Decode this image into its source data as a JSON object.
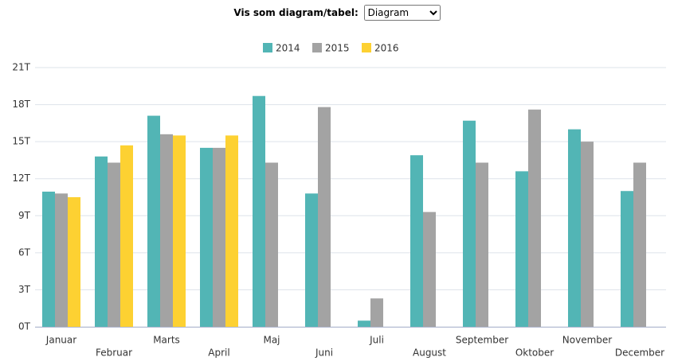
{
  "control": {
    "label": "Vis som diagram/tabel:",
    "value": "Diagram"
  },
  "chart_data": {
    "type": "bar",
    "categories": [
      "Januar",
      "Februar",
      "Marts",
      "April",
      "Maj",
      "Juni",
      "Juli",
      "August",
      "September",
      "Oktober",
      "November",
      "December"
    ],
    "series": [
      {
        "name": "2014",
        "color": "#52b5b5",
        "values": [
          10.95,
          13.8,
          17.1,
          14.5,
          18.7,
          10.8,
          0.5,
          13.9,
          16.7,
          12.6,
          16.0,
          11.0
        ]
      },
      {
        "name": "2015",
        "color": "#a3a3a3",
        "values": [
          10.8,
          13.3,
          15.6,
          14.5,
          13.3,
          17.8,
          2.3,
          9.3,
          13.3,
          17.6,
          15.0,
          13.3
        ]
      },
      {
        "name": "2016",
        "color": "#fdd132",
        "values": [
          10.5,
          14.7,
          15.5,
          15.5,
          null,
          null,
          null,
          null,
          null,
          null,
          null,
          null
        ]
      }
    ],
    "ylim": [
      0,
      21
    ],
    "yticks": [
      {
        "value": 0,
        "label": "0T"
      },
      {
        "value": 3,
        "label": "3T"
      },
      {
        "value": 6,
        "label": "6T"
      },
      {
        "value": 9,
        "label": "9T"
      },
      {
        "value": 12,
        "label": "12T"
      },
      {
        "value": 15,
        "label": "15T"
      },
      {
        "value": 18,
        "label": "18T"
      },
      {
        "value": 21,
        "label": "21T"
      }
    ],
    "grid": true
  }
}
